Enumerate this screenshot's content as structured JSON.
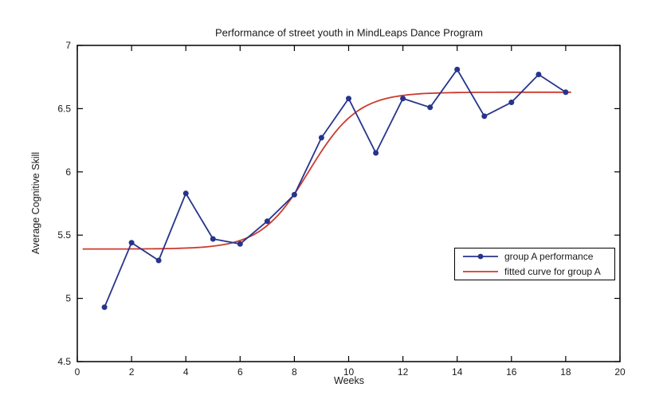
{
  "figure": {
    "background": "#ffffff"
  },
  "chart_data": {
    "type": "line",
    "title": "Performance of street youth in MindLeaps Dance Program",
    "xlabel": "Weeks",
    "ylabel": "Average Cognitive Skill",
    "xlim": [
      0,
      20
    ],
    "ylim": [
      4.5,
      7
    ],
    "xticks": [
      0,
      2,
      4,
      6,
      8,
      10,
      12,
      14,
      16,
      18,
      20
    ],
    "xtick_labels": [
      "0",
      "2",
      "4",
      "6",
      "8",
      "10",
      "12",
      "14",
      "16",
      "18",
      "20"
    ],
    "yticks": [
      4.5,
      5,
      5.5,
      6,
      6.5,
      7
    ],
    "ytick_labels": [
      "4.5",
      "5",
      "5.5",
      "6",
      "6.5",
      "7"
    ],
    "grid": false,
    "box": true,
    "axis_color": "#000000",
    "text_color": "#1a1a1a",
    "legend_position": "inside-lower-right",
    "series": [
      {
        "name": "group A performance",
        "type": "line-markers",
        "color": "#27348B",
        "marker": "filled-circle",
        "x": [
          1,
          2,
          3,
          4,
          5,
          6,
          7,
          8,
          9,
          10,
          11,
          12,
          13,
          14,
          15,
          16,
          17,
          18
        ],
        "y": [
          4.93,
          5.44,
          5.3,
          5.83,
          5.47,
          5.43,
          5.61,
          5.82,
          6.27,
          6.58,
          6.15,
          6.58,
          6.51,
          6.81,
          6.44,
          6.55,
          6.77,
          6.63
        ]
      },
      {
        "name": "fitted curve for group A",
        "type": "fitted-curve",
        "color": "#CB3A2F",
        "fit": {
          "model": "logistic",
          "lower_asymptote": 5.39,
          "upper_asymptote": 6.63,
          "midpoint_week": 8.55,
          "growth_rate": 1.12,
          "x_start": 0.2,
          "x_end": 18.3
        }
      }
    ]
  }
}
